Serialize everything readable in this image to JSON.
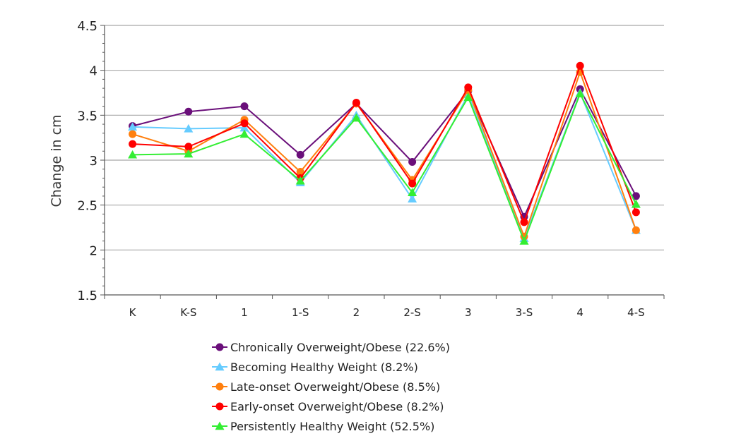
{
  "chart_data": {
    "type": "line",
    "title": "",
    "xlabel": "",
    "ylabel": "Change in cm",
    "ylim": [
      1.5,
      4.5
    ],
    "yticks": [
      "1.5",
      "2",
      "2.5",
      "3",
      "3.5",
      "4",
      "4.5"
    ],
    "grid": "horizontal",
    "legend_position": "bottom",
    "categories": [
      "K",
      "K-S",
      "1",
      "1-S",
      "2",
      "2-S",
      "3",
      "3-S",
      "4",
      "4-S"
    ],
    "series": [
      {
        "name": "Chronically Overweight/Obese (22.6%)",
        "color": "#6a0f7a",
        "marker": "circle",
        "values": [
          3.38,
          3.54,
          3.6,
          3.06,
          3.63,
          2.98,
          3.77,
          2.37,
          3.79,
          2.6
        ]
      },
      {
        "name": "Becoming Healthy Weight (8.2%)",
        "color": "#66ccff",
        "marker": "triangle",
        "values": [
          3.37,
          3.35,
          3.36,
          2.75,
          3.5,
          2.57,
          3.73,
          2.13,
          3.75,
          2.22
        ]
      },
      {
        "name": "Late-onset Overweight/Obese (8.5%)",
        "color": "#ff7f0e",
        "marker": "circle",
        "values": [
          3.29,
          3.1,
          3.45,
          2.87,
          3.63,
          2.78,
          3.78,
          2.15,
          3.98,
          2.22
        ]
      },
      {
        "name": "Early-onset Overweight/Obese (8.2%)",
        "color": "#ff0000",
        "marker": "circle",
        "values": [
          3.18,
          3.15,
          3.41,
          2.8,
          3.64,
          2.74,
          3.81,
          2.31,
          4.05,
          2.42
        ]
      },
      {
        "name": "Persistently Healthy Weight (52.5%)",
        "color": "#33ee33",
        "marker": "triangle",
        "values": [
          3.06,
          3.07,
          3.29,
          2.77,
          3.47,
          2.64,
          3.7,
          2.1,
          3.74,
          2.51
        ]
      }
    ]
  }
}
